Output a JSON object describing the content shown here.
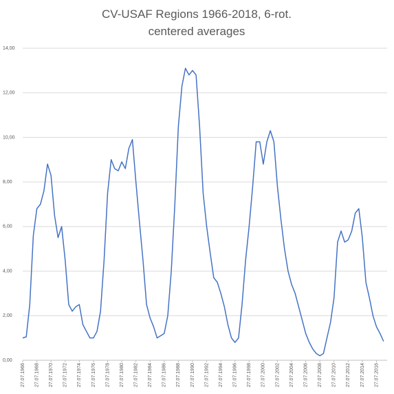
{
  "chart_data": {
    "type": "line",
    "title": "CV-USAF Regions 1966-2018, 6-rot. centered averages",
    "color": "#4472c4",
    "grid": true,
    "xlim": [
      "1966-07-27",
      "2018-01-27"
    ],
    "ylim": [
      0,
      14
    ],
    "yticks": [
      {
        "value": 0,
        "label": "0,00"
      },
      {
        "value": 2,
        "label": "2,00"
      },
      {
        "value": 4,
        "label": "4,00"
      },
      {
        "value": 6,
        "label": "6,00"
      },
      {
        "value": 8,
        "label": "8,00"
      },
      {
        "value": 10,
        "label": "10,00"
      },
      {
        "value": 12,
        "label": "12,00"
      },
      {
        "value": 14,
        "label": "14,00"
      }
    ],
    "xticks": [
      {
        "value": "1966-07-27",
        "label": "27.07.1966"
      },
      {
        "value": "1968-07-27",
        "label": "27.07.1968"
      },
      {
        "value": "1970-07-27",
        "label": "27.07.1970"
      },
      {
        "value": "1972-07-27",
        "label": "27.07.1972"
      },
      {
        "value": "1974-07-27",
        "label": "27.07.1974"
      },
      {
        "value": "1976-07-27",
        "label": "27.07.1976"
      },
      {
        "value": "1978-07-27",
        "label": "27.07.1978"
      },
      {
        "value": "1980-07-27",
        "label": "27.07.1980"
      },
      {
        "value": "1982-07-27",
        "label": "27.07.1982"
      },
      {
        "value": "1984-07-27",
        "label": "27.07.1984"
      },
      {
        "value": "1986-07-27",
        "label": "27.07.1986"
      },
      {
        "value": "1988-07-27",
        "label": "27.07.1988"
      },
      {
        "value": "1990-07-27",
        "label": "27.07.1990"
      },
      {
        "value": "1992-07-27",
        "label": "27.07.1992"
      },
      {
        "value": "1994-07-27",
        "label": "27.07.1994"
      },
      {
        "value": "1996-07-27",
        "label": "27.07.1996"
      },
      {
        "value": "1998-07-27",
        "label": "27.07.1998"
      },
      {
        "value": "2000-07-27",
        "label": "27.07.2000"
      },
      {
        "value": "2002-07-27",
        "label": "27.07.2002"
      },
      {
        "value": "2004-07-27",
        "label": "27.07.2004"
      },
      {
        "value": "2006-07-27",
        "label": "27.07.2006"
      },
      {
        "value": "2008-07-27",
        "label": "27.07.2008"
      },
      {
        "value": "2010-07-27",
        "label": "27.07.2010"
      },
      {
        "value": "2012-07-27",
        "label": "27.07.2012"
      },
      {
        "value": "2014-07-27",
        "label": "27.07.2014"
      },
      {
        "value": "2016-07-27",
        "label": "27.07.2016"
      }
    ],
    "x": [
      "1966-07-27",
      "1967-01-27",
      "1967-07-27",
      "1968-01-27",
      "1968-07-27",
      "1969-01-27",
      "1969-07-27",
      "1970-01-27",
      "1970-07-27",
      "1971-01-27",
      "1971-07-27",
      "1972-01-27",
      "1972-07-27",
      "1973-01-27",
      "1973-07-27",
      "1974-01-27",
      "1974-07-27",
      "1975-01-27",
      "1975-07-27",
      "1976-01-27",
      "1976-07-27",
      "1977-01-27",
      "1977-07-27",
      "1978-01-27",
      "1978-07-27",
      "1979-01-27",
      "1979-07-27",
      "1980-01-27",
      "1980-07-27",
      "1981-01-27",
      "1981-07-27",
      "1982-01-27",
      "1982-07-27",
      "1983-01-27",
      "1983-07-27",
      "1984-01-27",
      "1984-07-27",
      "1985-01-27",
      "1985-07-27",
      "1986-01-27",
      "1986-07-27",
      "1987-01-27",
      "1987-07-27",
      "1988-01-27",
      "1988-07-27",
      "1989-01-27",
      "1989-07-27",
      "1990-01-27",
      "1990-07-27",
      "1991-01-27",
      "1991-07-27",
      "1992-01-27",
      "1992-07-27",
      "1993-01-27",
      "1993-07-27",
      "1994-01-27",
      "1994-07-27",
      "1995-01-27",
      "1995-07-27",
      "1996-01-27",
      "1996-07-27",
      "1997-01-27",
      "1997-07-27",
      "1998-01-27",
      "1998-07-27",
      "1999-01-27",
      "1999-07-27",
      "2000-01-27",
      "2000-07-27",
      "2001-01-27",
      "2001-07-27",
      "2002-01-27",
      "2002-07-27",
      "2003-01-27",
      "2003-07-27",
      "2004-01-27",
      "2004-07-27",
      "2005-01-27",
      "2005-07-27",
      "2006-01-27",
      "2006-07-27",
      "2007-01-27",
      "2007-07-27",
      "2008-01-27",
      "2008-07-27",
      "2009-01-27",
      "2009-07-27",
      "2010-01-27",
      "2010-07-27",
      "2011-01-27",
      "2011-07-27",
      "2012-01-27",
      "2012-07-27",
      "2013-01-27",
      "2013-07-27",
      "2014-01-27",
      "2014-07-27",
      "2015-01-27",
      "2015-07-27",
      "2016-01-27",
      "2016-07-27",
      "2017-01-27",
      "2017-07-27"
    ],
    "values": [
      1.0,
      1.05,
      2.5,
      5.6,
      6.8,
      7.0,
      7.6,
      8.8,
      8.3,
      6.5,
      5.5,
      6.0,
      4.5,
      2.5,
      2.2,
      2.4,
      2.5,
      1.6,
      1.3,
      1.0,
      1.0,
      1.3,
      2.2,
      4.5,
      7.5,
      9.0,
      8.6,
      8.5,
      8.9,
      8.6,
      9.5,
      9.9,
      8.0,
      6.2,
      4.5,
      2.5,
      1.9,
      1.5,
      1.0,
      1.1,
      1.2,
      2.0,
      4.0,
      7.0,
      10.5,
      12.3,
      13.1,
      12.8,
      13.0,
      12.8,
      10.5,
      7.5,
      6.0,
      4.8,
      3.7,
      3.5,
      3.0,
      2.4,
      1.6,
      1.0,
      0.8,
      1.0,
      2.5,
      4.5,
      6.0,
      7.8,
      9.8,
      9.8,
      8.8,
      9.8,
      10.3,
      9.8,
      7.8,
      6.3,
      5.0,
      4.0,
      3.4,
      3.0,
      2.4,
      1.8,
      1.2,
      0.8,
      0.5,
      0.3,
      0.2,
      0.3,
      1.0,
      1.7,
      2.8,
      5.3,
      5.8,
      5.3,
      5.4,
      5.8,
      6.6,
      6.8,
      5.5,
      3.5,
      2.8,
      2.0,
      1.5,
      1.2,
      0.85
    ]
  }
}
